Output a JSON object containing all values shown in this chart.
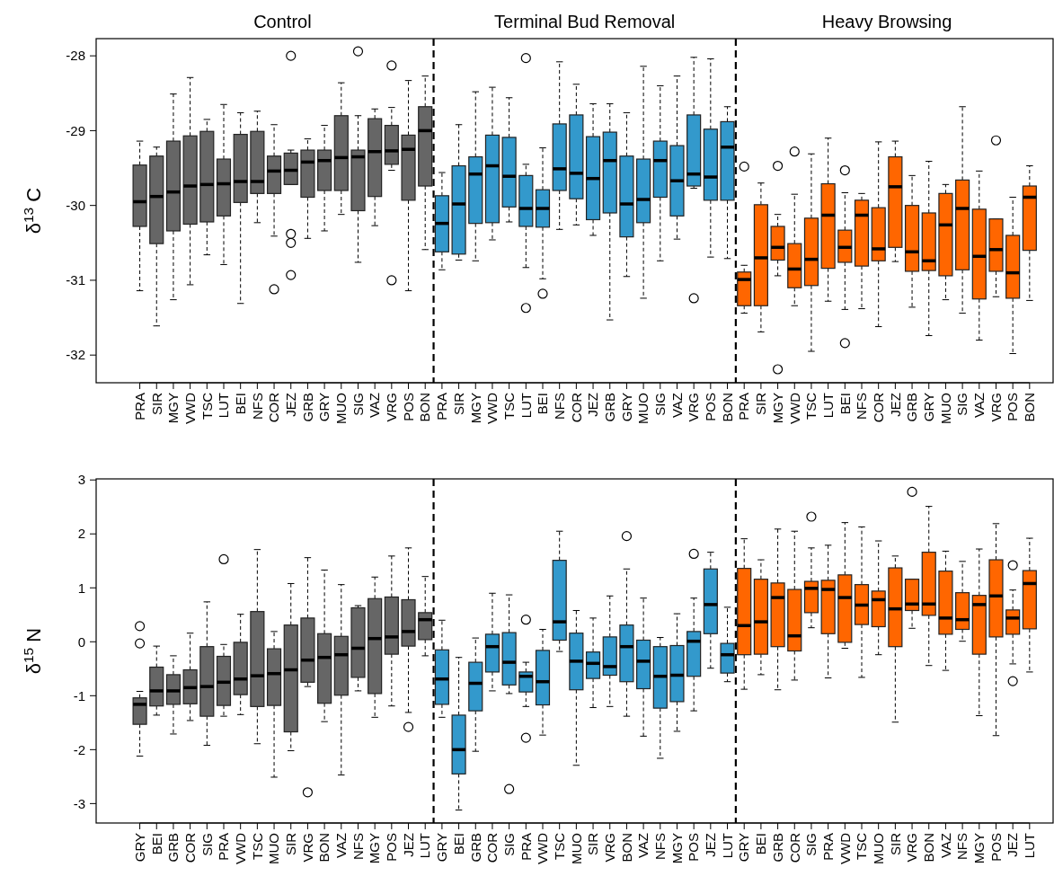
{
  "chart_data": [
    {
      "type": "box",
      "ylabel": "δ$^{13}$ C",
      "annotations": [
        "Control",
        "Terminal Bud Removal",
        "Heavy Browsing"
      ],
      "ylim": [
        -32.37,
        -27.77
      ],
      "yticks": [
        -32,
        -31,
        -30,
        -29,
        -28
      ],
      "categories": [
        "PRA",
        "SIR",
        "MGY",
        "VWD",
        "TSC",
        "LUT",
        "BEI",
        "NFS",
        "COR",
        "JEZ",
        "GRB",
        "GRY",
        "MUO",
        "SIG",
        "VAZ",
        "VRG",
        "POS",
        "BON",
        "PRA",
        "SIR",
        "MGY",
        "VWD",
        "TSC",
        "LUT",
        "BEI",
        "NFS",
        "COR",
        "JEZ",
        "GRB",
        "GRY",
        "MUO",
        "SIG",
        "VAZ",
        "VRG",
        "POS",
        "BON",
        "PRA",
        "SIR",
        "MGY",
        "VWD",
        "TSC",
        "LUT",
        "BEI",
        "NFS",
        "COR",
        "JEZ",
        "GRB",
        "GRY",
        "MUO",
        "SIG",
        "VAZ",
        "VRG",
        "POS",
        "BON"
      ],
      "series": [
        {
          "color": "#666666",
          "boxes": [
            {
              "low": -31.14,
              "q1": -30.28,
              "median": -29.95,
              "q3": -29.46,
              "high": -29.14
            },
            {
              "low": -31.61,
              "q1": -30.51,
              "median": -29.88,
              "q3": -29.34,
              "high": -29.22
            },
            {
              "low": -31.26,
              "q1": -30.34,
              "median": -29.82,
              "q3": -29.14,
              "high": -28.51
            },
            {
              "low": -31.06,
              "q1": -30.25,
              "median": -29.74,
              "q3": -29.07,
              "high": -28.29
            },
            {
              "low": -30.66,
              "q1": -30.22,
              "median": -29.72,
              "q3": -29.01,
              "high": -28.85
            },
            {
              "low": -30.79,
              "q1": -30.14,
              "median": -29.71,
              "q3": -29.38,
              "high": -28.65
            },
            {
              "low": -31.31,
              "q1": -29.96,
              "median": -29.68,
              "q3": -29.05,
              "high": -28.76
            },
            {
              "low": -30.23,
              "q1": -29.84,
              "median": -29.68,
              "q3": -29.01,
              "high": -28.74
            },
            {
              "low": -30.41,
              "q1": -29.84,
              "median": -29.54,
              "q3": -29.34,
              "high": -28.92,
              "outliers": [
                -31.12
              ]
            },
            {
              "low": -29.72,
              "q1": -29.72,
              "median": -29.53,
              "q3": -29.3,
              "high": -29.26,
              "outliers": [
                -28.0,
                -30.38,
                -30.5,
                -30.93
              ]
            },
            {
              "low": -30.44,
              "q1": -29.89,
              "median": -29.42,
              "q3": -29.26,
              "high": -29.11
            },
            {
              "low": -30.34,
              "q1": -29.8,
              "median": -29.4,
              "q3": -29.26,
              "high": -28.93
            },
            {
              "low": -30.12,
              "q1": -29.8,
              "median": -29.36,
              "q3": -28.8,
              "high": -28.36
            },
            {
              "low": -30.76,
              "q1": -30.07,
              "median": -29.35,
              "q3": -29.26,
              "high": -28.8,
              "outliers": [
                -27.94
              ]
            },
            {
              "low": -30.27,
              "q1": -29.88,
              "median": -29.28,
              "q3": -28.84,
              "high": -28.71
            },
            {
              "low": -29.53,
              "q1": -29.45,
              "median": -29.27,
              "q3": -28.93,
              "high": -28.69,
              "outliers": [
                -28.13,
                -31.0
              ]
            },
            {
              "low": -31.14,
              "q1": -29.93,
              "median": -29.25,
              "q3": -29.06,
              "high": -28.33
            },
            {
              "low": -30.59,
              "q1": -29.74,
              "median": -29.0,
              "q3": -28.68,
              "high": -28.27
            },
            null,
            null,
            null,
            null,
            null,
            null,
            null,
            null,
            null,
            null,
            null,
            null,
            null,
            null,
            null,
            null,
            null,
            null,
            null,
            null,
            null,
            null,
            null,
            null,
            null,
            null,
            null,
            null,
            null,
            null,
            null,
            null,
            null,
            null,
            null,
            null
          ]
        },
        {
          "color": "#3399cc",
          "boxes": [
            null,
            null,
            null,
            null,
            null,
            null,
            null,
            null,
            null,
            null,
            null,
            null,
            null,
            null,
            null,
            null,
            null,
            null,
            {
              "low": -30.86,
              "q1": -30.62,
              "median": -30.24,
              "q3": -29.87,
              "high": -29.56
            },
            {
              "low": -30.73,
              "q1": -30.65,
              "median": -29.98,
              "q3": -29.47,
              "high": -28.92
            },
            {
              "low": -30.74,
              "q1": -30.24,
              "median": -29.58,
              "q3": -29.35,
              "high": -28.48
            },
            {
              "low": -30.46,
              "q1": -30.23,
              "median": -29.47,
              "q3": -29.06,
              "high": -28.42
            },
            {
              "low": -30.22,
              "q1": -30.02,
              "median": -29.61,
              "q3": -29.09,
              "high": -28.56
            },
            {
              "low": -30.83,
              "q1": -30.28,
              "median": -30.04,
              "q3": -29.6,
              "high": -29.45,
              "outliers": [
                -28.03,
                -31.37
              ]
            },
            {
              "low": -30.98,
              "q1": -30.29,
              "median": -30.04,
              "q3": -29.79,
              "high": -29.23,
              "outliers": [
                -31.18
              ]
            },
            {
              "low": -30.32,
              "q1": -29.8,
              "median": -29.51,
              "q3": -28.91,
              "high": -28.08
            },
            {
              "low": -30.26,
              "q1": -29.91,
              "median": -29.57,
              "q3": -28.79,
              "high": -28.38
            },
            {
              "low": -30.4,
              "q1": -30.19,
              "median": -29.64,
              "q3": -29.08,
              "high": -28.64
            },
            {
              "low": -31.53,
              "q1": -30.1,
              "median": -29.4,
              "q3": -29.02,
              "high": -28.64
            },
            {
              "low": -30.95,
              "q1": -30.42,
              "median": -29.98,
              "q3": -29.34,
              "high": -28.76
            },
            {
              "low": -31.24,
              "q1": -30.23,
              "median": -29.92,
              "q3": -29.38,
              "high": -28.14
            },
            {
              "low": -30.74,
              "q1": -29.89,
              "median": -29.4,
              "q3": -29.14,
              "high": -28.4
            },
            {
              "low": -30.45,
              "q1": -30.14,
              "median": -29.67,
              "q3": -29.2,
              "high": -28.27
            },
            {
              "low": -29.77,
              "q1": -29.74,
              "median": -29.58,
              "q3": -28.79,
              "high": -28.02,
              "outliers": [
                -31.24
              ]
            },
            {
              "low": -30.69,
              "q1": -29.93,
              "median": -29.62,
              "q3": -28.98,
              "high": -28.04
            },
            {
              "low": -30.71,
              "q1": -29.93,
              "median": -29.22,
              "q3": -28.88,
              "high": -28.68
            },
            null,
            null,
            null,
            null,
            null,
            null,
            null,
            null,
            null,
            null,
            null,
            null,
            null,
            null,
            null,
            null,
            null,
            null
          ]
        },
        {
          "color": "#ff6600",
          "boxes": [
            null,
            null,
            null,
            null,
            null,
            null,
            null,
            null,
            null,
            null,
            null,
            null,
            null,
            null,
            null,
            null,
            null,
            null,
            null,
            null,
            null,
            null,
            null,
            null,
            null,
            null,
            null,
            null,
            null,
            null,
            null,
            null,
            null,
            null,
            null,
            null,
            {
              "low": -31.44,
              "q1": -31.34,
              "median": -30.99,
              "q3": -30.89,
              "high": -30.8,
              "outliers": [
                -29.48
              ]
            },
            {
              "low": -31.69,
              "q1": -31.34,
              "median": -30.7,
              "q3": -29.99,
              "high": -29.7
            },
            {
              "low": -30.94,
              "q1": -30.73,
              "median": -30.56,
              "q3": -30.28,
              "high": -30.12,
              "outliers": [
                -29.47,
                -32.19
              ]
            },
            {
              "low": -31.34,
              "q1": -31.1,
              "median": -30.85,
              "q3": -30.51,
              "high": -29.85,
              "outliers": [
                -29.28
              ]
            },
            {
              "low": -31.95,
              "q1": -31.07,
              "median": -30.72,
              "q3": -30.17,
              "high": -29.31
            },
            {
              "low": -31.28,
              "q1": -30.84,
              "median": -30.13,
              "q3": -29.71,
              "high": -29.1
            },
            {
              "low": -31.39,
              "q1": -30.76,
              "median": -30.56,
              "q3": -30.33,
              "high": -29.83,
              "outliers": [
                -29.53,
                -31.84
              ]
            },
            {
              "low": -31.38,
              "q1": -30.81,
              "median": -30.13,
              "q3": -29.93,
              "high": -29.84
            },
            {
              "low": -31.62,
              "q1": -30.74,
              "median": -30.58,
              "q3": -30.03,
              "high": -29.15
            },
            {
              "low": -30.75,
              "q1": -30.56,
              "median": -29.75,
              "q3": -29.35,
              "high": -29.14
            },
            {
              "low": -31.36,
              "q1": -30.88,
              "median": -30.62,
              "q3": -30.0,
              "high": -29.6
            },
            {
              "low": -31.74,
              "q1": -30.87,
              "median": -30.74,
              "q3": -30.1,
              "high": -29.41
            },
            {
              "low": -31.26,
              "q1": -30.94,
              "median": -30.26,
              "q3": -29.84,
              "high": -29.72
            },
            {
              "low": -31.44,
              "q1": -30.86,
              "median": -30.04,
              "q3": -29.66,
              "high": -28.68
            },
            {
              "low": -31.8,
              "q1": -31.25,
              "median": -30.68,
              "q3": -30.05,
              "high": -29.54
            },
            {
              "low": -31.22,
              "q1": -30.88,
              "median": -30.59,
              "q3": -30.18,
              "high": -30.18,
              "outliers": [
                -29.13
              ]
            },
            {
              "low": -31.98,
              "q1": -31.24,
              "median": -30.9,
              "q3": -30.4,
              "high": -29.89
            },
            {
              "low": -31.27,
              "q1": -30.6,
              "median": -29.89,
              "q3": -29.74,
              "high": -29.47
            }
          ]
        }
      ]
    },
    {
      "type": "box",
      "ylabel": "δ$^{15}$ N",
      "ylim": [
        -3.36,
        3.02
      ],
      "yticks": [
        -3,
        -2,
        -1,
        0,
        1,
        2,
        3
      ],
      "categories": [
        "GRY",
        "BEI",
        "GRB",
        "COR",
        "SIG",
        "PRA",
        "VWD",
        "TSC",
        "MUO",
        "SIR",
        "VRG",
        "BON",
        "VAZ",
        "NFS",
        "MGY",
        "POS",
        "JEZ",
        "LUT",
        "GRY",
        "BEI",
        "GRB",
        "COR",
        "SIG",
        "PRA",
        "VWD",
        "TSC",
        "MUO",
        "SIR",
        "VRG",
        "BON",
        "VAZ",
        "NFS",
        "MGY",
        "POS",
        "JEZ",
        "LUT",
        "GRY",
        "BEI",
        "GRB",
        "COR",
        "SIG",
        "PRA",
        "VWD",
        "TSC",
        "MUO",
        "SIR",
        "VRG",
        "BON",
        "VAZ",
        "NFS",
        "MGY",
        "POS",
        "JEZ",
        "LUT"
      ],
      "series": [
        {
          "color": "#666666",
          "boxes": [
            {
              "low": -2.12,
              "q1": -1.53,
              "median": -1.16,
              "q3": -1.04,
              "high": -0.92,
              "outliers": [
                0.29,
                -0.03
              ]
            },
            {
              "low": -1.36,
              "q1": -1.19,
              "median": -0.91,
              "q3": -0.47,
              "high": -0.08
            },
            {
              "low": -1.71,
              "q1": -1.16,
              "median": -0.91,
              "q3": -0.61,
              "high": -0.26
            },
            {
              "low": -1.46,
              "q1": -1.15,
              "median": -0.85,
              "q3": -0.52,
              "high": 0.16
            },
            {
              "low": -1.92,
              "q1": -1.38,
              "median": -0.83,
              "q3": -0.09,
              "high": 0.74
            },
            {
              "low": -1.38,
              "q1": -1.18,
              "median": -0.75,
              "q3": -0.27,
              "high": -0.05,
              "outliers": [
                1.53
              ]
            },
            {
              "low": -1.35,
              "q1": -0.98,
              "median": -0.69,
              "q3": -0.01,
              "high": 0.51
            },
            {
              "low": -1.89,
              "q1": -1.2,
              "median": -0.63,
              "q3": 0.56,
              "high": 1.71
            },
            {
              "low": -2.51,
              "q1": -1.18,
              "median": -0.59,
              "q3": -0.13,
              "high": 0.19
            },
            {
              "low": -2.02,
              "q1": -1.67,
              "median": -0.52,
              "q3": 0.31,
              "high": 1.08
            },
            {
              "low": -0.83,
              "q1": -0.75,
              "median": -0.34,
              "q3": 0.44,
              "high": 1.56,
              "outliers": [
                -2.79
              ]
            },
            {
              "low": -1.48,
              "q1": -1.14,
              "median": -0.29,
              "q3": 0.15,
              "high": 1.33
            },
            {
              "low": -2.47,
              "q1": -0.99,
              "median": -0.24,
              "q3": 0.1,
              "high": 1.06
            },
            {
              "low": -0.91,
              "q1": -0.66,
              "median": -0.12,
              "q3": 0.63,
              "high": 0.67
            },
            {
              "low": -1.4,
              "q1": -0.96,
              "median": 0.06,
              "q3": 0.8,
              "high": 1.2
            },
            {
              "low": -1.19,
              "q1": -0.23,
              "median": 0.09,
              "q3": 0.83,
              "high": 1.59
            },
            {
              "low": -1.31,
              "q1": -0.08,
              "median": 0.19,
              "q3": 0.78,
              "high": 1.74,
              "outliers": [
                -1.58
              ]
            },
            {
              "low": -0.26,
              "q1": 0.04,
              "median": 0.41,
              "q3": 0.54,
              "high": 1.21
            },
            null,
            null,
            null,
            null,
            null,
            null,
            null,
            null,
            null,
            null,
            null,
            null,
            null,
            null,
            null,
            null,
            null,
            null,
            null,
            null,
            null,
            null,
            null,
            null,
            null,
            null,
            null,
            null,
            null,
            null,
            null,
            null,
            null,
            null,
            null,
            null
          ]
        },
        {
          "color": "#3399cc",
          "boxes": [
            null,
            null,
            null,
            null,
            null,
            null,
            null,
            null,
            null,
            null,
            null,
            null,
            null,
            null,
            null,
            null,
            null,
            null,
            {
              "low": -1.4,
              "q1": -1.16,
              "median": -0.69,
              "q3": -0.15,
              "high": 0.4
            },
            {
              "low": -3.12,
              "q1": -2.45,
              "median": -2.0,
              "q3": -1.36,
              "high": -0.29
            },
            {
              "low": -2.03,
              "q1": -1.28,
              "median": -0.77,
              "q3": -0.38,
              "high": 0.07
            },
            {
              "low": -0.91,
              "q1": -0.56,
              "median": -0.09,
              "q3": 0.14,
              "high": 0.9
            },
            {
              "low": -0.96,
              "q1": -0.8,
              "median": -0.38,
              "q3": 0.17,
              "high": 0.87,
              "outliers": [
                -2.73
              ]
            },
            {
              "low": -1.2,
              "q1": -0.93,
              "median": -0.64,
              "q3": -0.56,
              "high": -0.38,
              "outliers": [
                0.41,
                -1.78
              ]
            },
            {
              "low": -1.73,
              "q1": -1.17,
              "median": -0.74,
              "q3": -0.16,
              "high": 0.23
            },
            {
              "low": -0.18,
              "q1": 0.03,
              "median": 0.37,
              "q3": 1.51,
              "high": 2.05
            },
            {
              "low": -2.29,
              "q1": -0.89,
              "median": -0.36,
              "q3": 0.16,
              "high": 0.58
            },
            {
              "low": -1.22,
              "q1": -0.68,
              "median": -0.4,
              "q3": -0.19,
              "high": 0.44
            },
            {
              "low": -1.2,
              "q1": -0.62,
              "median": -0.46,
              "q3": 0.09,
              "high": 0.85
            },
            {
              "low": -1.38,
              "q1": -0.74,
              "median": -0.09,
              "q3": 0.31,
              "high": 1.35,
              "outliers": [
                1.96
              ]
            },
            {
              "low": -1.75,
              "q1": -0.87,
              "median": -0.36,
              "q3": 0.03,
              "high": 0.81
            },
            {
              "low": -2.16,
              "q1": -1.23,
              "median": -0.64,
              "q3": -0.09,
              "high": 0.08
            },
            {
              "low": -1.66,
              "q1": -1.11,
              "median": -0.62,
              "q3": -0.07,
              "high": 0.52
            },
            {
              "low": -1.28,
              "q1": -0.64,
              "median": 0.01,
              "q3": 0.19,
              "high": 0.81,
              "outliers": [
                1.63
              ]
            },
            {
              "low": -0.49,
              "q1": 0.15,
              "median": 0.69,
              "q3": 1.35,
              "high": 1.66
            },
            {
              "low": -0.74,
              "q1": -0.58,
              "median": -0.24,
              "q3": -0.03,
              "high": 0.64
            },
            null,
            null,
            null,
            null,
            null,
            null,
            null,
            null,
            null,
            null,
            null,
            null,
            null,
            null,
            null,
            null,
            null,
            null
          ]
        },
        {
          "color": "#ff6600",
          "boxes": [
            null,
            null,
            null,
            null,
            null,
            null,
            null,
            null,
            null,
            null,
            null,
            null,
            null,
            null,
            null,
            null,
            null,
            null,
            null,
            null,
            null,
            null,
            null,
            null,
            null,
            null,
            null,
            null,
            null,
            null,
            null,
            null,
            null,
            null,
            null,
            null,
            {
              "low": -0.88,
              "q1": -0.24,
              "median": 0.3,
              "q3": 1.36,
              "high": 1.91
            },
            {
              "low": -0.61,
              "q1": -0.23,
              "median": 0.37,
              "q3": 1.16,
              "high": 1.52
            },
            {
              "low": -0.89,
              "q1": -0.09,
              "median": 0.82,
              "q3": 1.09,
              "high": 2.09
            },
            {
              "low": -0.71,
              "q1": -0.17,
              "median": 0.11,
              "q3": 0.97,
              "high": 2.05
            },
            {
              "low": 0.26,
              "q1": 0.54,
              "median": 0.99,
              "q3": 1.12,
              "high": 1.74,
              "outliers": [
                2.32
              ]
            },
            {
              "low": -0.67,
              "q1": 0.15,
              "median": 0.97,
              "q3": 1.14,
              "high": 1.79
            },
            {
              "low": -0.12,
              "q1": -0.01,
              "median": 0.82,
              "q3": 1.24,
              "high": 2.21
            },
            {
              "low": -0.66,
              "q1": 0.32,
              "median": 0.68,
              "q3": 1.06,
              "high": 2.13
            },
            {
              "low": -0.24,
              "q1": 0.28,
              "median": 0.78,
              "q3": 0.94,
              "high": 1.87
            },
            {
              "low": -1.49,
              "q1": -0.09,
              "median": 0.61,
              "q3": 1.37,
              "high": 1.59
            },
            {
              "low": 0.25,
              "q1": 0.58,
              "median": 0.7,
              "q3": 1.16,
              "high": 1.16,
              "outliers": [
                2.78
              ]
            },
            {
              "low": -0.44,
              "q1": 0.49,
              "median": 0.7,
              "q3": 1.66,
              "high": 2.51
            },
            {
              "low": -0.53,
              "q1": 0.14,
              "median": 0.44,
              "q3": 1.31,
              "high": 1.68
            },
            {
              "low": 0.01,
              "q1": 0.23,
              "median": 0.41,
              "q3": 0.91,
              "high": 1.49
            },
            {
              "low": -1.37,
              "q1": -0.23,
              "median": 0.69,
              "q3": 0.86,
              "high": 1.72
            },
            {
              "low": -1.74,
              "q1": 0.09,
              "median": 0.85,
              "q3": 1.52,
              "high": 2.19
            },
            {
              "low": -0.41,
              "q1": 0.14,
              "median": 0.44,
              "q3": 0.59,
              "high": 0.96,
              "outliers": [
                1.42,
                -0.73
              ]
            },
            {
              "low": -0.56,
              "q1": 0.24,
              "median": 1.08,
              "q3": 1.32,
              "high": 1.92
            }
          ]
        }
      ]
    }
  ]
}
